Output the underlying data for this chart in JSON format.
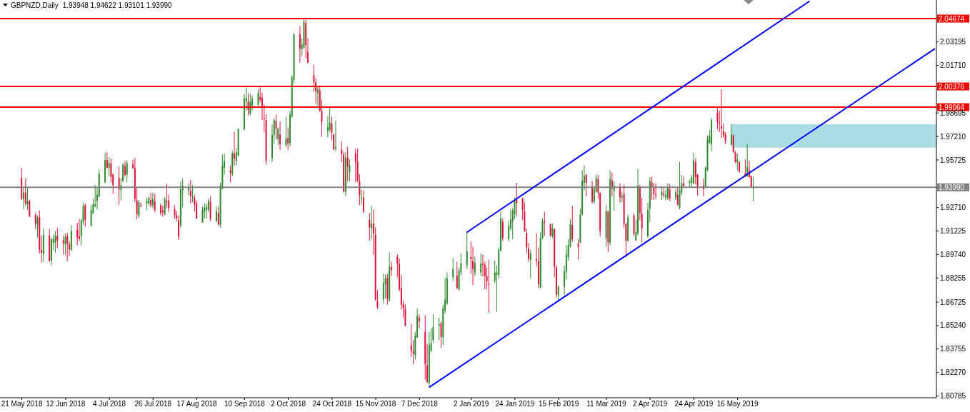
{
  "chart_data": {
    "type": "candlestick",
    "title": "GBPNZD,Daily",
    "subtitle": "1.93948 1.94622 1.93101 1.93990",
    "x": [
      "2018-05-21",
      "2018-05-22",
      "2018-05-23",
      "2018-05-24",
      "2018-05-25",
      "2018-05-28",
      "2018-05-29",
      "2018-05-30",
      "2018-05-31",
      "2018-06-01",
      "2018-06-04",
      "2018-06-05",
      "2018-06-06",
      "2018-06-07",
      "2018-06-08",
      "2018-06-11",
      "2018-06-12",
      "2018-06-13",
      "2018-06-14",
      "2018-06-15",
      "2018-06-18",
      "2018-06-19",
      "2018-06-20",
      "2018-06-21",
      "2018-06-22",
      "2018-06-25",
      "2018-06-26",
      "2018-06-27",
      "2018-06-28",
      "2018-06-29",
      "2018-07-02",
      "2018-07-03",
      "2018-07-04",
      "2018-07-05",
      "2018-07-06",
      "2018-07-09",
      "2018-07-10",
      "2018-07-11",
      "2018-07-12",
      "2018-07-13",
      "2018-07-16",
      "2018-07-17",
      "2018-07-18",
      "2018-07-19",
      "2018-07-20",
      "2018-07-23",
      "2018-07-24",
      "2018-07-25",
      "2018-07-26",
      "2018-07-27",
      "2018-07-30",
      "2018-07-31",
      "2018-08-01",
      "2018-08-02",
      "2018-08-03",
      "2018-08-06",
      "2018-08-07",
      "2018-08-08",
      "2018-08-09",
      "2018-08-10",
      "2018-08-13",
      "2018-08-14",
      "2018-08-15",
      "2018-08-16",
      "2018-08-17",
      "2018-08-20",
      "2018-08-21",
      "2018-08-22",
      "2018-08-23",
      "2018-08-24",
      "2018-08-27",
      "2018-08-28",
      "2018-08-29",
      "2018-08-30",
      "2018-08-31",
      "2018-09-03",
      "2018-09-04",
      "2018-09-05",
      "2018-09-06",
      "2018-09-07",
      "2018-09-10",
      "2018-09-11",
      "2018-09-12",
      "2018-09-13",
      "2018-09-14",
      "2018-09-17",
      "2018-09-18",
      "2018-09-19",
      "2018-09-20",
      "2018-09-21",
      "2018-09-24",
      "2018-09-25",
      "2018-09-26",
      "2018-09-27",
      "2018-09-28",
      "2018-10-01",
      "2018-10-02",
      "2018-10-03",
      "2018-10-04",
      "2018-10-05",
      "2018-10-08",
      "2018-10-09",
      "2018-10-10",
      "2018-10-11",
      "2018-10-12",
      "2018-10-15",
      "2018-10-16",
      "2018-10-17",
      "2018-10-18",
      "2018-10-19",
      "2018-10-22",
      "2018-10-23",
      "2018-10-24",
      "2018-10-25",
      "2018-10-26",
      "2018-10-29",
      "2018-10-30",
      "2018-10-31",
      "2018-11-01",
      "2018-11-02",
      "2018-11-05",
      "2018-11-06",
      "2018-11-07",
      "2018-11-08",
      "2018-11-09",
      "2018-11-12",
      "2018-11-13",
      "2018-11-14",
      "2018-11-15",
      "2018-11-16",
      "2018-11-19",
      "2018-11-20",
      "2018-11-21",
      "2018-11-22",
      "2018-11-23",
      "2018-11-26",
      "2018-11-27",
      "2018-11-28",
      "2018-11-29",
      "2018-11-30",
      "2018-12-03",
      "2018-12-04",
      "2018-12-05",
      "2018-12-06",
      "2018-12-07",
      "2018-12-10",
      "2018-12-11",
      "2018-12-12",
      "2018-12-13",
      "2018-12-14",
      "2018-12-17",
      "2018-12-18",
      "2018-12-19",
      "2018-12-20",
      "2018-12-21",
      "2018-12-24",
      "2018-12-26",
      "2018-12-27",
      "2018-12-28",
      "2018-12-31",
      "2019-01-02",
      "2019-01-03",
      "2019-01-04",
      "2019-01-07",
      "2019-01-08",
      "2019-01-09",
      "2019-01-10",
      "2019-01-11",
      "2019-01-14",
      "2019-01-15",
      "2019-01-16",
      "2019-01-17",
      "2019-01-18",
      "2019-01-21",
      "2019-01-22",
      "2019-01-23",
      "2019-01-24",
      "2019-01-25",
      "2019-01-28",
      "2019-01-29",
      "2019-01-30",
      "2019-01-31",
      "2019-02-01",
      "2019-02-04",
      "2019-02-05",
      "2019-02-06",
      "2019-02-07",
      "2019-02-08",
      "2019-02-11",
      "2019-02-12",
      "2019-02-13",
      "2019-02-14",
      "2019-02-15",
      "2019-02-18",
      "2019-02-19",
      "2019-02-20",
      "2019-02-21",
      "2019-02-22",
      "2019-02-25",
      "2019-02-26",
      "2019-02-27",
      "2019-02-28",
      "2019-03-01",
      "2019-03-04",
      "2019-03-05",
      "2019-03-06",
      "2019-03-07",
      "2019-03-08",
      "2019-03-11",
      "2019-03-12",
      "2019-03-13",
      "2019-03-14",
      "2019-03-15",
      "2019-03-18",
      "2019-03-19",
      "2019-03-20",
      "2019-03-21",
      "2019-03-22",
      "2019-03-25",
      "2019-03-26",
      "2019-03-27",
      "2019-03-28",
      "2019-03-29",
      "2019-04-01",
      "2019-04-02",
      "2019-04-03",
      "2019-04-04",
      "2019-04-05",
      "2019-04-08",
      "2019-04-09",
      "2019-04-10",
      "2019-04-11",
      "2019-04-12",
      "2019-04-15",
      "2019-04-16",
      "2019-04-17",
      "2019-04-18",
      "2019-04-19",
      "2019-04-22",
      "2019-04-23",
      "2019-04-24",
      "2019-04-25",
      "2019-04-26",
      "2019-04-29",
      "2019-04-30",
      "2019-05-01",
      "2019-05-02",
      "2019-05-03",
      "2019-05-06",
      "2019-05-07",
      "2019-05-08",
      "2019-05-09",
      "2019-05-10",
      "2019-05-13",
      "2019-05-14",
      "2019-05-15",
      "2019-05-16",
      "2019-05-17",
      "2019-05-20",
      "2019-05-21",
      "2019-05-22",
      "2019-05-23",
      "2019-05-24"
    ],
    "ohlc": [
      [
        1.9458,
        1.9523,
        1.9319,
        1.9327
      ],
      [
        1.9324,
        1.9395,
        1.9262,
        1.9369
      ],
      [
        1.9365,
        1.9455,
        1.9282,
        1.9297
      ],
      [
        1.9289,
        1.9398,
        1.9256,
        1.9312
      ],
      [
        1.9312,
        1.9322,
        1.9211,
        1.9214
      ],
      [
        1.9224,
        1.9236,
        1.9135,
        1.9169
      ],
      [
        1.9161,
        1.9221,
        1.9081,
        1.9202
      ],
      [
        1.9211,
        1.9252,
        1.898,
        1.9003
      ],
      [
        1.9003,
        1.9093,
        1.8925,
        1.8983
      ],
      [
        1.8977,
        1.9138,
        1.8928,
        1.9099
      ],
      [
        1.9093,
        1.9135,
        1.8928,
        1.8932
      ],
      [
        1.8935,
        1.9078,
        1.8905,
        1.9071
      ],
      [
        1.9048,
        1.9101,
        1.9,
        1.9071
      ],
      [
        1.9048,
        1.9123,
        1.8985,
        1.9093
      ],
      [
        1.909,
        1.9143,
        1.9015,
        1.9063
      ],
      [
        1.9063,
        1.9093,
        1.8973,
        1.9044
      ],
      [
        1.9038,
        1.9105,
        1.897,
        1.9086
      ],
      [
        1.909,
        1.9111,
        1.8931,
        1.9044
      ],
      [
        1.9041,
        1.9056,
        1.8965,
        1.9007
      ],
      [
        1.9,
        1.9161,
        1.9,
        1.9123
      ],
      [
        1.9131,
        1.9173,
        1.9033,
        1.9081
      ],
      [
        1.9089,
        1.9199,
        1.9059,
        1.9074
      ],
      [
        1.9089,
        1.9199,
        1.903,
        1.9188
      ],
      [
        1.9181,
        1.9301,
        1.9161,
        1.9279
      ],
      [
        1.9286,
        1.9297,
        1.9149,
        1.9194
      ],
      [
        1.9157,
        1.9286,
        1.9151,
        1.9255
      ],
      [
        1.9233,
        1.9327,
        1.9232,
        1.9294
      ],
      [
        1.9277,
        1.9413,
        1.9274,
        1.9292
      ],
      [
        1.9312,
        1.9395,
        1.9259,
        1.9352
      ],
      [
        1.9342,
        1.9512,
        1.9337,
        1.9485
      ],
      [
        1.9432,
        1.9618,
        1.9425,
        1.9572
      ],
      [
        1.9572,
        1.9621,
        1.9518,
        1.9523
      ],
      [
        1.9523,
        1.9588,
        1.947,
        1.9553
      ],
      [
        1.955,
        1.958,
        1.9432,
        1.9466
      ],
      [
        1.9481,
        1.9485,
        1.9357,
        1.9413
      ],
      [
        1.9458,
        1.953,
        1.9289,
        1.9387
      ],
      [
        1.9383,
        1.9455,
        1.9316,
        1.9413
      ],
      [
        1.944,
        1.9553,
        1.9432,
        1.9542
      ],
      [
        1.9535,
        1.9563,
        1.947,
        1.9478
      ],
      [
        1.9478,
        1.9571,
        1.9432,
        1.9553
      ],
      [
        1.9545,
        1.9572,
        1.9518,
        1.952
      ],
      [
        1.9523,
        1.9586,
        1.9304,
        1.9327
      ],
      [
        1.9315,
        1.9402,
        1.9196,
        1.9229
      ],
      [
        1.9221,
        1.9319,
        1.9206,
        1.9304
      ],
      [
        1.9286,
        1.9304,
        1.9274,
        1.928
      ],
      [
        1.9297,
        1.9334,
        1.9256,
        1.9312
      ],
      [
        1.9297,
        1.9342,
        1.9282,
        1.933
      ],
      [
        1.9319,
        1.9365,
        1.9271,
        1.9286
      ],
      [
        1.9286,
        1.9365,
        1.9267,
        1.9324
      ],
      [
        1.9312,
        1.9357,
        1.9241,
        1.9256
      ],
      [
        1.9286,
        1.9297,
        1.9221,
        1.9236
      ],
      [
        1.9252,
        1.9282,
        1.9214,
        1.9241
      ],
      [
        1.9226,
        1.9337,
        1.9226,
        1.9324
      ],
      [
        1.9312,
        1.9422,
        1.9267,
        1.9304
      ],
      [
        1.9315,
        1.9353,
        1.9241,
        1.9267
      ],
      [
        1.9262,
        1.9286,
        1.9199,
        1.9221
      ],
      [
        1.9221,
        1.9247,
        1.9184,
        1.9202
      ],
      [
        1.9191,
        1.9221,
        1.9066,
        1.9086
      ],
      [
        1.9157,
        1.9437,
        1.9146,
        1.9387
      ],
      [
        1.938,
        1.9455,
        1.9271,
        1.941
      ],
      [
        1.9377,
        1.9422,
        1.935,
        1.9402
      ],
      [
        1.9377,
        1.9447,
        1.9297,
        1.9342
      ],
      [
        1.9334,
        1.9413,
        1.9304,
        1.9339
      ],
      [
        1.9331,
        1.9353,
        1.9247,
        1.9292
      ],
      [
        1.9297,
        1.9316,
        1.9199,
        1.9202
      ],
      [
        1.9176,
        1.9277,
        1.9173,
        1.9256
      ],
      [
        1.9244,
        1.9297,
        1.9202,
        1.9271
      ],
      [
        1.9256,
        1.9297,
        1.9202,
        1.9277
      ],
      [
        1.9256,
        1.9327,
        1.9241,
        1.9312
      ],
      [
        1.9307,
        1.9342,
        1.9184,
        1.9199
      ],
      [
        1.9184,
        1.9277,
        1.9181,
        1.9247
      ],
      [
        1.9237,
        1.9277,
        1.9154,
        1.9166
      ],
      [
        1.9161,
        1.9428,
        1.9146,
        1.941
      ],
      [
        1.9387,
        1.9606,
        1.9387,
        1.9535
      ],
      [
        1.9523,
        1.9613,
        1.9481,
        1.9565
      ],
      [
        1.9505,
        1.9538,
        1.9432,
        1.9493
      ],
      [
        1.9481,
        1.9628,
        1.947,
        1.9613
      ],
      [
        1.9613,
        1.9752,
        1.9538,
        1.958
      ],
      [
        1.9565,
        1.9646,
        1.9535,
        1.9621
      ],
      [
        1.9601,
        1.9771,
        1.9595,
        1.9767
      ],
      [
        1.9764,
        1.999,
        1.9764,
        1.996
      ],
      [
        1.9945,
        2.0032,
        1.9884,
        1.9967
      ],
      [
        1.9942,
        1.9993,
        1.9854,
        1.9888
      ],
      [
        1.9866,
        1.999,
        1.9854,
        1.994
      ],
      [
        1.9915,
        1.9982,
        1.9884,
        1.9957
      ],
      [
        1.9922,
        2.002,
        1.9915,
        1.9997
      ],
      [
        1.9972,
        2.0038,
        1.9937,
        1.9952
      ],
      [
        1.9967,
        1.9997,
        1.9824,
        1.9915
      ],
      [
        1.9839,
        1.9922,
        1.9749,
        1.9832
      ],
      [
        1.9824,
        1.9862,
        1.9545,
        1.9568
      ],
      [
        1.9583,
        1.9797,
        1.956,
        1.9731
      ],
      [
        1.9731,
        1.9836,
        1.9673,
        1.9824
      ],
      [
        1.982,
        1.9859,
        1.9704,
        1.9771
      ],
      [
        1.9704,
        1.9779,
        1.9666,
        1.9771
      ],
      [
        1.9734,
        1.9817,
        1.9636,
        1.9673
      ],
      [
        1.9666,
        1.9847,
        1.9655,
        1.9707
      ],
      [
        1.9711,
        1.9776,
        1.9636,
        1.9676
      ],
      [
        1.9681,
        1.9884,
        1.9658,
        1.9859
      ],
      [
        1.9847,
        2.011,
        1.9839,
        2.0095
      ],
      [
        2.008,
        2.0374,
        2.0058,
        2.0367
      ],
      [
        2.0367,
        2.0419,
        2.0189,
        2.0276
      ],
      [
        2.0273,
        2.0344,
        2.0231,
        2.0306
      ],
      [
        2.0284,
        2.0467,
        2.0276,
        2.0449
      ],
      [
        2.0439,
        2.046,
        2.0216,
        2.0299
      ],
      [
        2.0254,
        2.0344,
        2.0183,
        2.0189
      ],
      [
        2.011,
        2.0174,
        2.0005,
        2.0065
      ],
      [
        2.0065,
        2.0092,
        1.993,
        2.0005
      ],
      [
        1.9997,
        2.0035,
        1.9915,
        2.002
      ],
      [
        2.0012,
        2.0035,
        1.9877,
        1.9884
      ],
      [
        1.9884,
        1.9955,
        1.9719,
        1.9813
      ],
      [
        1.9757,
        1.9847,
        1.9714,
        1.9779
      ],
      [
        1.9764,
        1.9907,
        1.9749,
        1.9809
      ],
      [
        1.9804,
        1.9847,
        1.9696,
        1.9744
      ],
      [
        1.9734,
        1.9738,
        1.9633,
        1.9639
      ],
      [
        1.9644,
        1.982,
        1.9628,
        1.9654
      ],
      [
        1.9636,
        1.9689,
        1.956,
        1.9609
      ],
      [
        1.9606,
        1.9624,
        1.9365,
        1.9372
      ],
      [
        1.9372,
        1.9621,
        1.9342,
        1.9586
      ],
      [
        1.9586,
        1.9654,
        1.9437,
        1.953
      ],
      [
        1.9497,
        1.9576,
        1.9437,
        1.9538
      ],
      [
        1.9613,
        1.9644,
        1.9432,
        1.956
      ],
      [
        1.956,
        1.9644,
        1.9432,
        1.944
      ],
      [
        1.9437,
        1.9482,
        1.9286,
        1.935
      ],
      [
        1.9327,
        1.9383,
        1.9289,
        1.9334
      ],
      [
        1.9332,
        1.938,
        1.9237,
        1.9244
      ],
      [
        1.9192,
        1.9237,
        1.906,
        1.9146
      ],
      [
        1.9139,
        1.9282,
        1.9071,
        1.9169
      ],
      [
        1.9169,
        1.9259,
        1.8973,
        1.9108
      ],
      [
        1.9097,
        1.9146,
        1.8679,
        1.869
      ],
      [
        1.8679,
        1.8747,
        1.8629,
        1.8641
      ],
      [
        1.869,
        1.8852,
        1.8664,
        1.8795
      ],
      [
        1.8787,
        1.8845,
        1.8694,
        1.8822
      ],
      [
        1.8825,
        1.8852,
        1.8656,
        1.8694
      ],
      [
        1.8679,
        1.8985,
        1.8679,
        1.8898
      ],
      [
        1.8895,
        1.8928,
        1.8837,
        1.8875
      ],
      [
        1.8958,
        1.8976,
        1.883,
        1.8916
      ],
      [
        1.8916,
        1.895,
        1.874,
        1.8754
      ],
      [
        1.8762,
        1.8845,
        1.8626,
        1.8656
      ],
      [
        1.8659,
        1.8679,
        1.8574,
        1.8634
      ],
      [
        1.8629,
        1.8656,
        1.8521,
        1.8521
      ],
      [
        1.84,
        1.8536,
        1.8325,
        1.8363
      ],
      [
        1.8363,
        1.843,
        1.828,
        1.8348
      ],
      [
        1.8337,
        1.8483,
        1.831,
        1.8461
      ],
      [
        1.8448,
        1.8634,
        1.8446,
        1.8584
      ],
      [
        1.8574,
        1.8596,
        1.8506,
        1.8551
      ],
      [
        1.8483,
        1.8589,
        1.8182,
        1.828
      ],
      [
        1.8272,
        1.8408,
        1.8159,
        1.8167
      ],
      [
        1.8159,
        1.8483,
        1.814,
        1.8403
      ],
      [
        1.8363,
        1.8506,
        1.8355,
        1.8415
      ],
      [
        1.843,
        1.8596,
        1.8415,
        1.8514
      ],
      [
        1.8524,
        1.8574,
        1.843,
        1.8533
      ],
      [
        1.8539,
        1.8548,
        1.8382,
        1.8453
      ],
      [
        1.8448,
        1.8656,
        1.84,
        1.8634
      ],
      [
        1.8619,
        1.8825,
        1.8599,
        1.8687
      ],
      [
        1.8664,
        1.886,
        1.8656,
        1.8825
      ],
      [
        1.883,
        1.895,
        1.8807,
        1.8882
      ],
      [
        1.884,
        1.8928,
        1.8754,
        1.8762
      ],
      [
        1.875,
        1.889,
        1.8747,
        1.8871
      ],
      [
        1.886,
        1.898,
        1.884,
        1.892
      ],
      [
        1.8905,
        1.9116,
        1.8882,
        1.8995
      ],
      [
        1.8958,
        1.9056,
        1.8852,
        1.8946
      ],
      [
        1.8931,
        1.9021,
        1.878,
        1.8882
      ],
      [
        1.886,
        1.8961,
        1.8837,
        1.892
      ],
      [
        1.886,
        1.898,
        1.8837,
        1.8916
      ],
      [
        1.8916,
        1.8973,
        1.8837,
        1.8909
      ],
      [
        1.8909,
        1.8928,
        1.8754,
        1.8837
      ],
      [
        1.8837,
        1.889,
        1.8754,
        1.8804
      ],
      [
        1.8789,
        1.894,
        1.8604,
        1.8785
      ],
      [
        1.8807,
        1.8935,
        1.8792,
        1.886
      ],
      [
        1.8845,
        1.8905,
        1.8611,
        1.886
      ],
      [
        1.8845,
        1.9018,
        1.8822,
        1.9003
      ],
      [
        1.8995,
        1.9244,
        1.8995,
        1.9202
      ],
      [
        1.9181,
        1.9202,
        1.906,
        1.9078
      ],
      [
        1.9071,
        1.9184,
        1.9056,
        1.9154
      ],
      [
        1.9139,
        1.9259,
        1.9124,
        1.9196
      ],
      [
        1.9184,
        1.9267,
        1.9071,
        1.9252
      ],
      [
        1.9229,
        1.9334,
        1.9199,
        1.9319
      ],
      [
        1.9323,
        1.9428,
        1.9214,
        1.9297
      ],
      [
        1.9327,
        1.9334,
        1.9191,
        1.9256
      ],
      [
        1.9247,
        1.9304,
        1.9116,
        1.9121
      ],
      [
        1.9108,
        1.9139,
        1.898,
        1.9018
      ],
      [
        1.9011,
        1.9045,
        1.8928,
        1.8946
      ],
      [
        1.894,
        1.9003,
        1.8822,
        1.898
      ],
      [
        1.8943,
        1.9108,
        1.8898,
        1.8935
      ],
      [
        1.8931,
        1.9018,
        1.8762,
        1.8785
      ],
      [
        1.8765,
        1.9116,
        1.8759,
        1.9078
      ],
      [
        1.9078,
        1.9202,
        1.9071,
        1.9187
      ],
      [
        1.9184,
        1.9244,
        1.9093,
        1.9176
      ],
      [
        1.9166,
        1.9169,
        1.9086,
        1.9093
      ],
      [
        1.9093,
        1.9169,
        1.9078,
        1.9139
      ],
      [
        1.9135,
        1.9139,
        1.883,
        1.89
      ],
      [
        1.8895,
        1.8905,
        1.8702,
        1.872
      ],
      [
        1.8717,
        1.8777,
        1.8672,
        1.8769
      ],
      [
        1.8769,
        1.8905,
        1.8717,
        1.8867
      ],
      [
        1.8864,
        1.9033,
        1.8815,
        1.8976
      ],
      [
        1.8958,
        1.9071,
        1.8935,
        1.9033
      ],
      [
        1.9026,
        1.9196,
        1.9018,
        1.9166
      ],
      [
        1.9161,
        1.9282,
        1.9056,
        1.9071
      ],
      [
        1.9045,
        1.9071,
        1.8943,
        1.9021
      ],
      [
        1.9051,
        1.9262,
        1.9045,
        1.9226
      ],
      [
        1.9226,
        1.9508,
        1.9221,
        1.944
      ],
      [
        1.9428,
        1.9538,
        1.938,
        1.9473
      ],
      [
        1.9478,
        1.9482,
        1.9342,
        1.9428
      ],
      [
        1.9402,
        1.944,
        1.9297,
        1.9307
      ],
      [
        1.9307,
        1.941,
        1.9297,
        1.939
      ],
      [
        1.9372,
        1.9478,
        1.9365,
        1.9458
      ],
      [
        1.9452,
        1.9478,
        1.9327,
        1.9365
      ],
      [
        1.9362,
        1.9368,
        1.9086,
        1.9121
      ],
      [
        1.9075,
        1.9286,
        1.9021,
        1.9247
      ],
      [
        1.9244,
        1.9252,
        1.899,
        1.9051
      ],
      [
        1.9048,
        1.9508,
        1.9033,
        1.9452
      ],
      [
        1.9443,
        1.9493,
        1.9342,
        1.9392
      ],
      [
        1.9377,
        1.9437,
        1.9252,
        1.941
      ],
      [
        1.9402,
        1.9425,
        1.9301,
        1.9334
      ],
      [
        1.9334,
        1.9372,
        1.9304,
        1.9345
      ],
      [
        1.9357,
        1.9417,
        1.9142,
        1.9169
      ],
      [
        1.9169,
        1.9172,
        1.8958,
        1.906
      ],
      [
        1.906,
        1.9226,
        1.9056,
        1.9206
      ],
      [
        1.9221,
        1.9232,
        1.909,
        1.9105
      ],
      [
        1.9063,
        1.9196,
        1.906,
        1.9116
      ],
      [
        1.9108,
        1.9515,
        1.9093,
        1.941
      ],
      [
        1.9402,
        1.9417,
        1.9191,
        1.9236
      ],
      [
        1.9232,
        1.9334,
        1.9051,
        1.9139
      ],
      [
        1.909,
        1.9301,
        1.9081,
        1.9256
      ],
      [
        1.9262,
        1.9463,
        1.9181,
        1.9437
      ],
      [
        1.9432,
        1.9467,
        1.9319,
        1.9395
      ],
      [
        1.9402,
        1.9425,
        1.9319,
        1.9357
      ],
      [
        1.9357,
        1.9425,
        1.9327,
        1.935
      ],
      [
        1.9347,
        1.9402,
        1.9319,
        1.9372
      ],
      [
        1.936,
        1.9392,
        1.9334,
        1.9352
      ],
      [
        1.9334,
        1.9383,
        1.9316,
        1.935
      ],
      [
        1.9334,
        1.9425,
        1.9319,
        1.9395
      ],
      [
        1.9387,
        1.9418,
        1.9312,
        1.9327
      ],
      [
        1.9334,
        1.9387,
        1.9319,
        1.9368
      ],
      [
        1.9352,
        1.9395,
        1.9282,
        1.9289
      ],
      [
        1.9267,
        1.956,
        1.9259,
        1.938
      ],
      [
        1.9365,
        1.9478,
        1.935,
        1.9425
      ],
      [
        1.9425,
        1.947,
        1.9395,
        1.9407
      ],
      [
        1.9428,
        1.9447,
        1.9402,
        1.9437
      ],
      [
        1.9425,
        1.9478,
        1.9402,
        1.9463
      ],
      [
        1.9425,
        1.9618,
        1.9418,
        1.9568
      ],
      [
        1.956,
        1.9583,
        1.9418,
        1.9463
      ],
      [
        1.9478,
        1.9485,
        1.9347,
        1.9392
      ],
      [
        1.941,
        1.9455,
        1.9342,
        1.9387
      ],
      [
        1.9395,
        1.953,
        1.9395,
        1.9523
      ],
      [
        1.9508,
        1.9726,
        1.95,
        1.9704
      ],
      [
        1.9681,
        1.9764,
        1.9673,
        1.9726
      ],
      [
        1.9673,
        1.9839,
        1.9628,
        1.9824
      ],
      [
        1.987,
        1.9907,
        1.9768,
        1.9813
      ],
      [
        1.9809,
        1.9884,
        1.9749,
        1.9804
      ],
      [
        1.9786,
        2.002,
        1.9711,
        1.9771
      ],
      [
        1.9753,
        1.9802,
        1.9714,
        1.9729
      ],
      [
        1.9734,
        1.9749,
        1.9673,
        1.9693
      ],
      [
        1.9669,
        1.9799,
        1.9666,
        1.9734
      ],
      [
        1.9726,
        1.9734,
        1.9618,
        1.9621
      ],
      [
        1.9621,
        1.9628,
        1.9553,
        1.956
      ],
      [
        1.9558,
        1.9613,
        1.9508,
        1.9576
      ],
      [
        1.956,
        1.9564,
        1.9493,
        1.9497
      ],
      [
        1.9488,
        1.9576,
        1.9463,
        1.9467
      ],
      [
        1.947,
        1.9673,
        1.9467,
        1.9527
      ],
      [
        1.9508,
        1.9568,
        1.9458,
        1.9463
      ],
      [
        1.947,
        1.9473,
        1.9398,
        1.9402
      ],
      [
        1.93948,
        1.94622,
        1.93101,
        1.9399
      ]
    ],
    "colors": [
      "#dc143c",
      "#2e8b2e",
      "#dc143c",
      "#2e8b2e",
      "#dc143c",
      "#dc143c",
      "#2e8b2e",
      "#dc143c",
      "#dc143c",
      "#2e8b2e",
      "#dc143c",
      "#2e8b2e",
      "#2e8b2e",
      "#2e8b2e",
      "#dc143c",
      "#dc143c",
      "#2e8b2e",
      "#dc143c",
      "#dc143c",
      "#2e8b2e",
      "#dc143c",
      "#dc143c",
      "#2e8b2e",
      "#2e8b2e",
      "#dc143c",
      "#2e8b2e",
      "#2e8b2e",
      "#2e8b2e",
      "#2e8b2e",
      "#2e8b2e",
      "#2e8b2e",
      "#dc143c",
      "#2e8b2e",
      "#dc143c",
      "#dc143c",
      "#dc143c",
      "#2e8b2e",
      "#2e8b2e",
      "#dc143c",
      "#2e8b2e",
      "#dc143c",
      "#dc143c",
      "#dc143c",
      "#2e8b2e",
      "#dc143c",
      "#2e8b2e",
      "#2e8b2e",
      "#dc143c",
      "#2e8b2e",
      "#dc143c",
      "#dc143c",
      "#dc143c",
      "#2e8b2e",
      "#dc143c",
      "#dc143c",
      "#dc143c",
      "#dc143c",
      "#dc143c",
      "#2e8b2e",
      "#2e8b2e",
      "#2e8b2e",
      "#dc143c",
      "#2e8b2e",
      "#dc143c",
      "#dc143c",
      "#2e8b2e",
      "#2e8b2e",
      "#2e8b2e",
      "#2e8b2e",
      "#dc143c",
      "#2e8b2e",
      "#dc143c",
      "#2e8b2e",
      "#2e8b2e",
      "#2e8b2e",
      "#dc143c",
      "#2e8b2e",
      "#dc143c",
      "#2e8b2e",
      "#2e8b2e",
      "#2e8b2e",
      "#2e8b2e",
      "#dc143c",
      "#2e8b2e",
      "#2e8b2e",
      "#2e8b2e",
      "#dc143c",
      "#dc143c",
      "#dc143c",
      "#dc143c",
      "#2e8b2e",
      "#2e8b2e",
      "#dc143c",
      "#2e8b2e",
      "#dc143c",
      "#2e8b2e",
      "#dc143c",
      "#2e8b2e",
      "#2e8b2e",
      "#2e8b2e",
      "#dc143c",
      "#2e8b2e",
      "#2e8b2e",
      "#dc143c",
      "#dc143c",
      "#dc143c",
      "#dc143c",
      "#2e8b2e",
      "#dc143c",
      "#dc143c",
      "#2e8b2e",
      "#2e8b2e",
      "#dc143c",
      "#dc143c",
      "#2e8b2e",
      "#dc143c",
      "#dc143c",
      "#2e8b2e",
      "#dc143c",
      "#2e8b2e",
      "#dc143c",
      "#dc143c",
      "#dc143c",
      "#2e8b2e",
      "#dc143c",
      "#dc143c",
      "#2e8b2e",
      "#dc143c",
      "#dc143c",
      "#dc143c",
      "#2e8b2e",
      "#2e8b2e",
      "#dc143c",
      "#2e8b2e",
      "#dc143c",
      "#dc143c",
      "#dc143c",
      "#dc143c",
      "#dc143c",
      "#dc143c",
      "#dc143c",
      "#dc143c",
      "#2e8b2e",
      "#2e8b2e",
      "#dc143c",
      "#dc143c",
      "#dc143c",
      "#2e8b2e",
      "#2e8b2e",
      "#2e8b2e",
      "#2e8b2e",
      "#dc143c",
      "#2e8b2e",
      "#2e8b2e",
      "#2e8b2e",
      "#2e8b2e",
      "#dc143c",
      "#2e8b2e",
      "#2e8b2e",
      "#2e8b2e",
      "#dc143c",
      "#dc143c",
      "#2e8b2e",
      "#2e8b2e",
      "#dc143c",
      "#dc143c",
      "#dc143c",
      "#dc143c",
      "#2e8b2e",
      "#2e8b2e",
      "#2e8b2e",
      "#2e8b2e",
      "#dc143c",
      "#2e8b2e",
      "#2e8b2e",
      "#2e8b2e",
      "#2e8b2e",
      "#dc143c",
      "#dc143c",
      "#dc143c",
      "#dc143c",
      "#dc143c",
      "#2e8b2e",
      "#dc143c",
      "#dc143c",
      "#2e8b2e",
      "#2e8b2e",
      "#dc143c",
      "#dc143c",
      "#2e8b2e",
      "#dc143c",
      "#dc143c",
      "#2e8b2e",
      "#2e8b2e",
      "#2e8b2e",
      "#2e8b2e",
      "#2e8b2e",
      "#dc143c",
      "#dc143c",
      "#2e8b2e",
      "#2e8b2e",
      "#2e8b2e",
      "#dc143c",
      "#dc143c",
      "#2e8b2e",
      "#2e8b2e",
      "#dc143c",
      "#dc143c",
      "#2e8b2e",
      "#dc143c",
      "#2e8b2e",
      "#dc143c",
      "#2e8b2e",
      "#dc143c",
      "#2e8b2e",
      "#dc143c",
      "#dc143c",
      "#2e8b2e",
      "#dc143c",
      "#2e8b2e",
      "#2e8b2e",
      "#dc143c",
      "#dc143c",
      "#2e8b2e",
      "#2e8b2e",
      "#dc143c",
      "#dc143c",
      "#dc143c",
      "#2e8b2e",
      "#dc143c",
      "#2e8b2e",
      "#2e8b2e",
      "#dc143c",
      "#2e8b2e",
      "#dc143c",
      "#2e8b2e",
      "#2e8b2e",
      "#dc143c",
      "#2e8b2e",
      "#2e8b2e",
      "#2e8b2e",
      "#dc143c",
      "#dc143c",
      "#dc143c",
      "#2e8b2e",
      "#2e8b2e",
      "#2e8b2e",
      "#2e8b2e",
      "#dc143c",
      "#dc143c",
      "#dc143c",
      "#dc143c",
      "#dc143c",
      "#2e8b2e",
      "#dc143c",
      "#dc143c",
      "#2e8b2e",
      "#dc143c",
      "#dc143c",
      "#2e8b2e",
      "#dc143c",
      "#dc143c",
      "#2e8b2e"
    ],
    "series": [
      {
        "type": "area",
        "x": [
          "2019-05-13",
          "2019-08-24"
        ],
        "values": [
          null,
          null
        ],
        "lower": [
          1.965,
          1.965
        ],
        "upper": [
          1.9798,
          1.9798
        ],
        "color": "#aadde4"
      },
      {
        "type": "line",
        "x": [
          "2018-12-31",
          "2019-06-21"
        ],
        "values": [
          1.9116,
          2.0576
        ],
        "color": "#0000ff"
      },
      {
        "type": "line",
        "x": [
          "2018-12-12",
          "2019-08-23"
        ],
        "values": [
          1.8134,
          2.0275
        ],
        "color": "#0000ff"
      }
    ],
    "xlim": [
      "2018-05-10",
      "2019-08-24"
    ],
    "xticks": [
      {
        "value": "2018-05-21",
        "label": "21 May 2018"
      },
      {
        "value": "2018-06-12",
        "label": "12 Jun 2018"
      },
      {
        "value": "2018-07-04",
        "label": "4 Jul 2018"
      },
      {
        "value": "2018-07-26",
        "label": "26 Jul 2018"
      },
      {
        "value": "2018-08-17",
        "label": "17 Aug 2018"
      },
      {
        "value": "2018-09-10",
        "label": "10 Sep 2018"
      },
      {
        "value": "2018-10-02",
        "label": "2 Oct 2018"
      },
      {
        "value": "2018-10-24",
        "label": "24 Oct 2018"
      },
      {
        "value": "2018-11-15",
        "label": "15 Nov 2018"
      },
      {
        "value": "2018-12-07",
        "label": "7 Dec 2018"
      },
      {
        "value": "2019-01-02",
        "label": "2 Jan 2019"
      },
      {
        "value": "2019-01-24",
        "label": "24 Jan 2019"
      },
      {
        "value": "2019-02-15",
        "label": "15 Feb 2019"
      },
      {
        "value": "2019-03-11",
        "label": "11 Mar 2019"
      },
      {
        "value": "2019-04-02",
        "label": "2 Apr 2019"
      },
      {
        "value": "2019-04-24",
        "label": "24 Apr 2019"
      },
      {
        "value": "2019-05-16",
        "label": "16 May 2019"
      }
    ],
    "ylim": [
      1.8067,
      2.0585
    ],
    "yticks": [
      {
        "value": 1.80785,
        "label": "1.80785"
      },
      {
        "value": 1.8227,
        "label": "1.82270"
      },
      {
        "value": 1.83755,
        "label": "1.83755"
      },
      {
        "value": 1.8524,
        "label": "1.85240"
      },
      {
        "value": 1.86725,
        "label": "1.86725"
      },
      {
        "value": 1.88255,
        "label": "1.88255"
      },
      {
        "value": 1.8974,
        "label": "1.89740"
      },
      {
        "value": 1.91225,
        "label": "1.91225"
      },
      {
        "value": 1.9271,
        "label": "1.92710"
      },
      {
        "value": 1.95725,
        "label": "1.95725"
      },
      {
        "value": 1.9721,
        "label": "1.97210"
      },
      {
        "value": 1.98695,
        "label": "1.98695"
      },
      {
        "value": 2.0171,
        "label": "2.01710"
      },
      {
        "value": 2.03195,
        "label": "2.03195"
      }
    ],
    "ref_lines": [
      {
        "axis": "y",
        "value": 2.04674,
        "label": "2.04674",
        "color": "#ff0000"
      },
      {
        "axis": "y",
        "value": 2.00376,
        "label": "2.00376",
        "color": "#ff0000"
      },
      {
        "axis": "y",
        "value": 1.99064,
        "label": "1.99064",
        "color": "#ff0000"
      },
      {
        "axis": "y",
        "value": 1.9399,
        "label": "1.93990",
        "color": "#808080"
      }
    ]
  }
}
